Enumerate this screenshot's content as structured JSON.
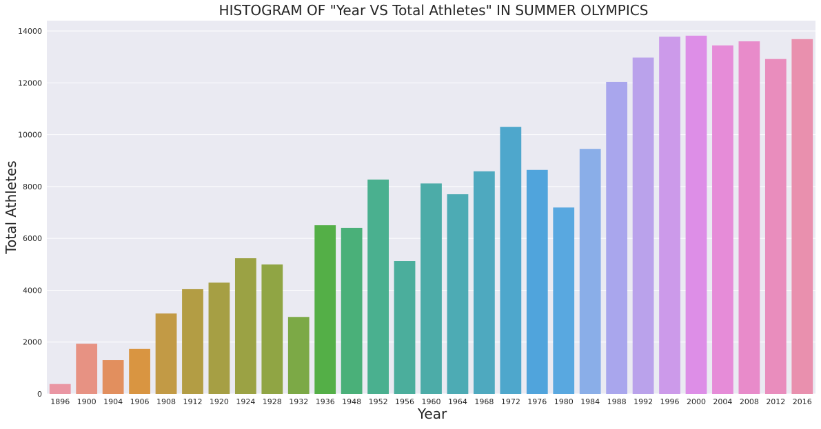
{
  "chart_data": {
    "type": "bar",
    "title": "HISTOGRAM OF \"Year VS Total Athletes\" IN SUMMER OLYMPICS",
    "xlabel": "Year",
    "ylabel": "Total Athletes",
    "ylim": [
      0,
      14400
    ],
    "yticks": [
      "0",
      "2000",
      "4000",
      "6000",
      "8000",
      "10000",
      "12000",
      "14000"
    ],
    "grid": true,
    "legend": "none",
    "categories": [
      "1896",
      "1900",
      "1904",
      "1906",
      "1908",
      "1912",
      "1920",
      "1924",
      "1928",
      "1932",
      "1936",
      "1948",
      "1952",
      "1956",
      "1960",
      "1964",
      "1968",
      "1972",
      "1976",
      "1980",
      "1984",
      "1988",
      "1992",
      "1996",
      "2000",
      "2004",
      "2008",
      "2012",
      "2016"
    ],
    "values": [
      380,
      1936,
      1301,
      1733,
      3101,
      4040,
      4292,
      5233,
      4992,
      2969,
      6506,
      6405,
      8270,
      5127,
      8119,
      7702,
      8588,
      10304,
      8641,
      7191,
      9454,
      12037,
      12977,
      13780,
      13821,
      13443,
      13602,
      12920,
      13688
    ],
    "colors": [
      "#ea96a3",
      "#e79283",
      "#e28f5e",
      "#d99541",
      "#c29a45",
      "#b39d44",
      "#a69f44",
      "#9ba244",
      "#90a544",
      "#7ca946",
      "#54af47",
      "#4ab079",
      "#4ab08f",
      "#4bae9c",
      "#4caca8",
      "#4dabb4",
      "#4ea9bf",
      "#4ea7cc",
      "#50a4dc",
      "#59a8e0",
      "#8aaee8",
      "#a9a6ed",
      "#baa2eb",
      "#cc9aea",
      "#dd8ee7",
      "#e68cd8",
      "#e88bca",
      "#e98dbd",
      "#e990ae"
    ],
    "background_color": "#eaeaf2",
    "grid_color": "#ffffff"
  }
}
